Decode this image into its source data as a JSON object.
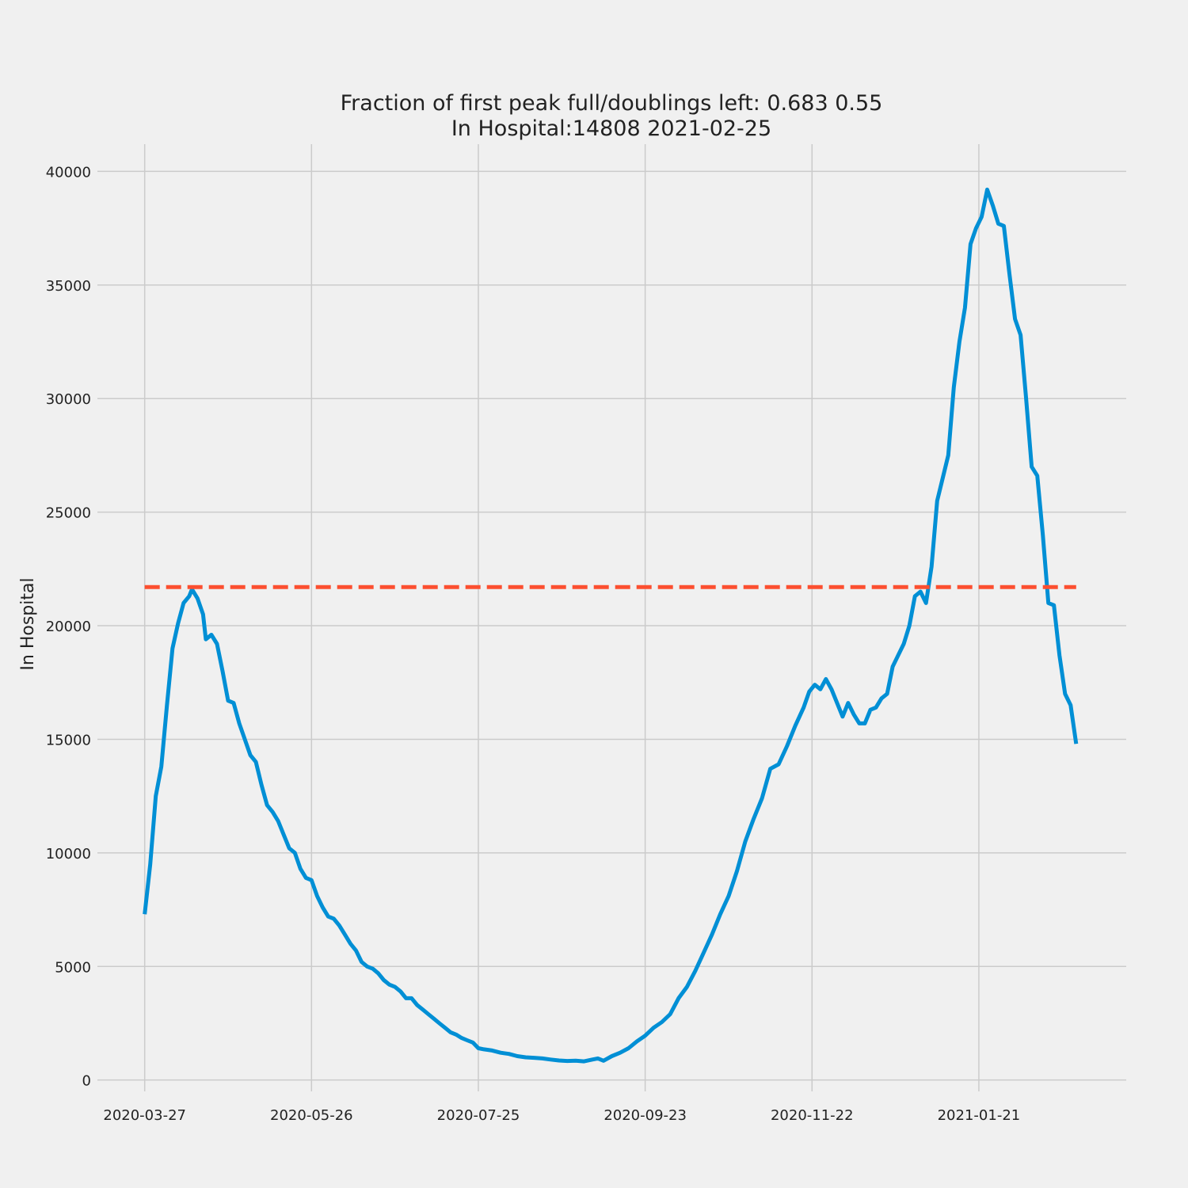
{
  "chart_data": {
    "type": "line",
    "title_lines": [
      "Fraction of first peak full/doublings left: 0.683 0.55",
      "In Hospital:14808 2021-02-25"
    ],
    "xlabel": "",
    "ylabel": "In Hospital",
    "x_start": "2020-03-27",
    "x_end": "2021-02-25",
    "xlim": [
      "2020-03-10",
      "2021-03-15"
    ],
    "ylim": [
      -500,
      41200
    ],
    "xticks": [
      "2020-03-27",
      "2020-05-26",
      "2020-07-25",
      "2020-09-23",
      "2020-11-22",
      "2021-01-21"
    ],
    "yticks": [
      0,
      5000,
      10000,
      15000,
      20000,
      25000,
      30000,
      35000,
      40000
    ],
    "grid": true,
    "series": [
      {
        "color": "#008fd5",
        "style": "solid",
        "points": [
          [
            "2020-03-27",
            7300
          ],
          [
            "2020-03-29",
            9500
          ],
          [
            "2020-03-31",
            12500
          ],
          [
            "2020-04-02",
            13800
          ],
          [
            "2020-04-04",
            16500
          ],
          [
            "2020-04-06",
            19000
          ],
          [
            "2020-04-08",
            20100
          ],
          [
            "2020-04-10",
            21000
          ],
          [
            "2020-04-12",
            21300
          ],
          [
            "2020-04-13",
            21600
          ],
          [
            "2020-04-15",
            21200
          ],
          [
            "2020-04-17",
            20500
          ],
          [
            "2020-04-18",
            19400
          ],
          [
            "2020-04-20",
            19600
          ],
          [
            "2020-04-22",
            19200
          ],
          [
            "2020-04-24",
            18000
          ],
          [
            "2020-04-26",
            16700
          ],
          [
            "2020-04-28",
            16600
          ],
          [
            "2020-04-30",
            15700
          ],
          [
            "2020-05-02",
            15000
          ],
          [
            "2020-05-04",
            14300
          ],
          [
            "2020-05-06",
            14000
          ],
          [
            "2020-05-08",
            13000
          ],
          [
            "2020-05-10",
            12100
          ],
          [
            "2020-05-12",
            11800
          ],
          [
            "2020-05-14",
            11400
          ],
          [
            "2020-05-16",
            10800
          ],
          [
            "2020-05-18",
            10200
          ],
          [
            "2020-05-20",
            10000
          ],
          [
            "2020-05-22",
            9300
          ],
          [
            "2020-05-24",
            8900
          ],
          [
            "2020-05-26",
            8800
          ],
          [
            "2020-05-28",
            8100
          ],
          [
            "2020-05-30",
            7600
          ],
          [
            "2020-06-01",
            7200
          ],
          [
            "2020-06-03",
            7100
          ],
          [
            "2020-06-05",
            6800
          ],
          [
            "2020-06-07",
            6400
          ],
          [
            "2020-06-09",
            6000
          ],
          [
            "2020-06-11",
            5700
          ],
          [
            "2020-06-13",
            5200
          ],
          [
            "2020-06-15",
            5000
          ],
          [
            "2020-06-17",
            4900
          ],
          [
            "2020-06-19",
            4700
          ],
          [
            "2020-06-21",
            4400
          ],
          [
            "2020-06-23",
            4200
          ],
          [
            "2020-06-25",
            4100
          ],
          [
            "2020-06-27",
            3900
          ],
          [
            "2020-06-29",
            3600
          ],
          [
            "2020-07-01",
            3600
          ],
          [
            "2020-07-03",
            3300
          ],
          [
            "2020-07-05",
            3100
          ],
          [
            "2020-07-07",
            2900
          ],
          [
            "2020-07-09",
            2700
          ],
          [
            "2020-07-11",
            2500
          ],
          [
            "2020-07-13",
            2300
          ],
          [
            "2020-07-15",
            2100
          ],
          [
            "2020-07-17",
            2000
          ],
          [
            "2020-07-19",
            1850
          ],
          [
            "2020-07-21",
            1750
          ],
          [
            "2020-07-23",
            1650
          ],
          [
            "2020-07-25",
            1400
          ],
          [
            "2020-07-27",
            1350
          ],
          [
            "2020-07-30",
            1300
          ],
          [
            "2020-08-02",
            1200
          ],
          [
            "2020-08-05",
            1150
          ],
          [
            "2020-08-08",
            1050
          ],
          [
            "2020-08-11",
            1000
          ],
          [
            "2020-08-14",
            980
          ],
          [
            "2020-08-17",
            950
          ],
          [
            "2020-08-20",
            900
          ],
          [
            "2020-08-23",
            860
          ],
          [
            "2020-08-26",
            840
          ],
          [
            "2020-08-29",
            850
          ],
          [
            "2020-09-01",
            820
          ],
          [
            "2020-09-04",
            900
          ],
          [
            "2020-09-06",
            950
          ],
          [
            "2020-09-08",
            850
          ],
          [
            "2020-09-11",
            1050
          ],
          [
            "2020-09-14",
            1200
          ],
          [
            "2020-09-17",
            1400
          ],
          [
            "2020-09-20",
            1700
          ],
          [
            "2020-09-23",
            1950
          ],
          [
            "2020-09-26",
            2300
          ],
          [
            "2020-09-29",
            2550
          ],
          [
            "2020-10-02",
            2900
          ],
          [
            "2020-10-05",
            3600
          ],
          [
            "2020-10-08",
            4100
          ],
          [
            "2020-10-11",
            4800
          ],
          [
            "2020-10-14",
            5600
          ],
          [
            "2020-10-17",
            6400
          ],
          [
            "2020-10-20",
            7300
          ],
          [
            "2020-10-23",
            8100
          ],
          [
            "2020-10-26",
            9200
          ],
          [
            "2020-10-29",
            10500
          ],
          [
            "2020-11-01",
            11500
          ],
          [
            "2020-11-04",
            12400
          ],
          [
            "2020-11-07",
            13700
          ],
          [
            "2020-11-10",
            13900
          ],
          [
            "2020-11-13",
            14700
          ],
          [
            "2020-11-16",
            15600
          ],
          [
            "2020-11-19",
            16400
          ],
          [
            "2020-11-21",
            17100
          ],
          [
            "2020-11-23",
            17400
          ],
          [
            "2020-11-25",
            17200
          ],
          [
            "2020-11-27",
            17650
          ],
          [
            "2020-11-29",
            17200
          ],
          [
            "2020-12-01",
            16600
          ],
          [
            "2020-12-03",
            16000
          ],
          [
            "2020-12-05",
            16600
          ],
          [
            "2020-12-07",
            16100
          ],
          [
            "2020-12-09",
            15700
          ],
          [
            "2020-12-11",
            15700
          ],
          [
            "2020-12-13",
            16300
          ],
          [
            "2020-12-15",
            16400
          ],
          [
            "2020-12-17",
            16800
          ],
          [
            "2020-12-19",
            17000
          ],
          [
            "2020-12-21",
            18200
          ],
          [
            "2020-12-23",
            18700
          ],
          [
            "2020-12-25",
            19200
          ],
          [
            "2020-12-27",
            20000
          ],
          [
            "2020-12-29",
            21300
          ],
          [
            "2020-12-31",
            21500
          ],
          [
            "2021-01-02",
            21000
          ],
          [
            "2021-01-04",
            22600
          ],
          [
            "2021-01-06",
            25500
          ],
          [
            "2021-01-08",
            26500
          ],
          [
            "2021-01-10",
            27500
          ],
          [
            "2021-01-12",
            30500
          ],
          [
            "2021-01-14",
            32500
          ],
          [
            "2021-01-16",
            34000
          ],
          [
            "2021-01-18",
            36800
          ],
          [
            "2021-01-20",
            37500
          ],
          [
            "2021-01-22",
            38000
          ],
          [
            "2021-01-24",
            39200
          ],
          [
            "2021-01-26",
            38500
          ],
          [
            "2021-01-28",
            37700
          ],
          [
            "2021-01-30",
            37600
          ],
          [
            "2021-02-01",
            35500
          ],
          [
            "2021-02-03",
            33500
          ],
          [
            "2021-02-05",
            32800
          ],
          [
            "2021-02-07",
            30000
          ],
          [
            "2021-02-09",
            27000
          ],
          [
            "2021-02-11",
            26600
          ],
          [
            "2021-02-13",
            24000
          ],
          [
            "2021-02-15",
            21000
          ],
          [
            "2021-02-17",
            20900
          ],
          [
            "2021-02-19",
            18700
          ],
          [
            "2021-02-21",
            17000
          ],
          [
            "2021-02-23",
            16500
          ],
          [
            "2021-02-25",
            14800
          ]
        ]
      },
      {
        "color": "#fc4f30",
        "style": "dashed",
        "points": [
          [
            "2020-03-27",
            21700
          ],
          [
            "2021-02-25",
            21700
          ]
        ]
      }
    ]
  }
}
